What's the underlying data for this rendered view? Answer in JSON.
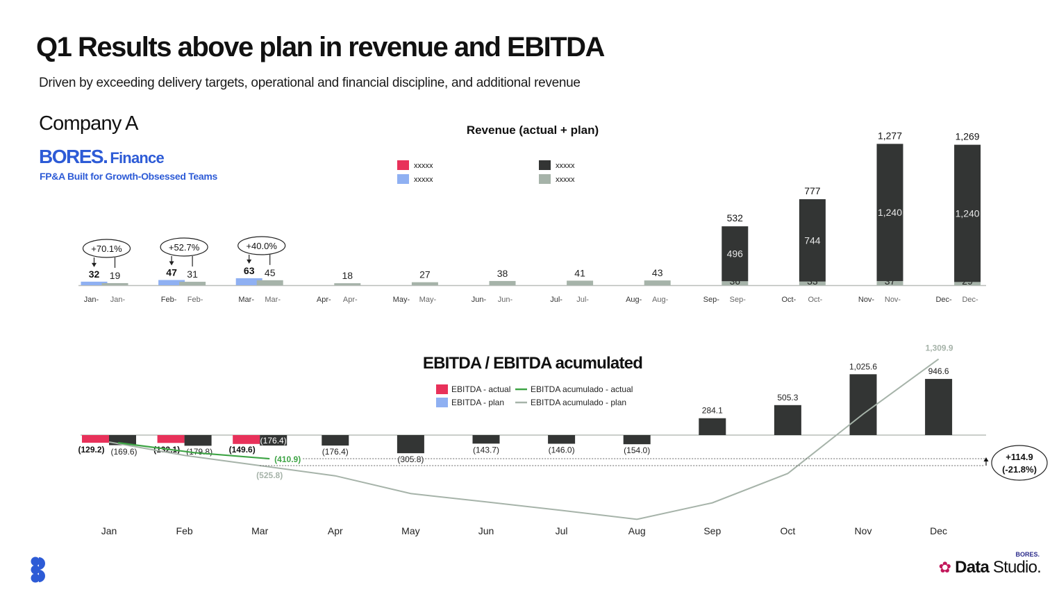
{
  "page": {
    "title": "Q1 Results above plan in revenue and EBITDA",
    "subtitle": "Driven by exceeding delivery targets, operational and financial discipline, and additional revenue",
    "company": "Company A",
    "brand_bold": "BORES.",
    "brand_word": "Finance",
    "tagline": "FP&A Built for Growth-Obsessed Teams",
    "footer_brand_small": "BORES.",
    "footer_brand_big": "Data",
    "footer_brand_light": "Studio."
  },
  "colors": {
    "red": "#e8315a",
    "blue": "#8fb0f2",
    "dark": "#333534",
    "sage": "#a6b3a9",
    "green": "#3ea445",
    "brand_blue": "#2d5bd6"
  },
  "chart_data": [
    {
      "type": "bar",
      "title": "Revenue (actual + plan)",
      "legend": [
        "xxxxx",
        "xxxxx",
        "xxxxx",
        "xxxxx"
      ],
      "categories": [
        "Jan",
        "Feb",
        "Mar",
        "Apr",
        "May",
        "Jun",
        "Jul",
        "Aug",
        "Sep",
        "Oct",
        "Nov",
        "Dec"
      ],
      "series": [
        {
          "values": [
            32,
            47,
            63,
            null,
            null,
            null,
            null,
            null,
            null,
            null,
            null,
            null
          ]
        },
        {
          "values": [
            19,
            31,
            45,
            18,
            27,
            38,
            41,
            43,
            36,
            33,
            37,
            29
          ]
        },
        {
          "values": [
            null,
            null,
            null,
            null,
            null,
            null,
            null,
            null,
            496,
            744,
            1240,
            1240
          ]
        }
      ],
      "totals": [
        null,
        null,
        null,
        null,
        null,
        null,
        null,
        null,
        532,
        777,
        1277,
        1269
      ],
      "tick_labels_actual": [
        "Jan-",
        "Feb-",
        "Mar-",
        "Apr-",
        "May-",
        "Jun-",
        "Jul-",
        "Aug-",
        "Sep-",
        "Oct-",
        "Nov-",
        "Dec-"
      ],
      "tick_labels_plan": [
        "Jan-",
        "Feb-",
        "Mar-",
        "Apr-",
        "May-",
        "Jun-",
        "Jul-",
        "Aug-",
        "Sep-",
        "Oct-",
        "Nov-",
        "Dec-"
      ],
      "variance_labels": [
        "+70.1%",
        "+52.7%",
        "+40.0%"
      ],
      "ylim": [
        0,
        1300
      ]
    },
    {
      "type": "bar",
      "title": "EBITDA / EBITDA acumulated",
      "legend": [
        "EBITDA - actual",
        "EBITDA - plan",
        "EBITDA acumulado - actual",
        "EBITDA acumulado - plan"
      ],
      "categories": [
        "Jan",
        "Feb",
        "Mar",
        "Apr",
        "May",
        "Jun",
        "Jul",
        "Aug",
        "Sep",
        "Oct",
        "Nov",
        "Dec"
      ],
      "series": [
        {
          "name": "EBITDA - actual",
          "values": [
            -129.2,
            -132.1,
            -149.6,
            null,
            null,
            null,
            null,
            null,
            null,
            null,
            null,
            null
          ]
        },
        {
          "name": "EBITDA - plan",
          "values": [
            -169.6,
            -179.8,
            -176.4,
            -176.4,
            -305.8,
            -143.7,
            -146.0,
            -154.0,
            284.1,
            505.3,
            1025.6,
            946.6
          ]
        },
        {
          "name": "EBITDA acumulado - actual",
          "values": [
            -129.2,
            -261.3,
            -410.9,
            null,
            null,
            null,
            null,
            null,
            null,
            null,
            null,
            null
          ]
        },
        {
          "name": "EBITDA acumulado - plan",
          "values": [
            -169.6,
            -349.4,
            -525.8,
            -702.2,
            -1008.0,
            -1151.7,
            -1297.7,
            -1451.7,
            -1167.6,
            -662.3,
            363.3,
            1309.9
          ]
        }
      ],
      "value_labels": {
        "actual": [
          "(129.2)",
          "(132.1)",
          "(149.6)"
        ],
        "plan": [
          "(169.6)",
          "(179.8)",
          "(176.4)",
          "(176.4)",
          "(305.8)",
          "(143.7)",
          "(146.0)",
          "(154.0)",
          "284.1",
          "505.3",
          "1,025.6",
          "946.6"
        ],
        "cum_actual_end": "(410.9)",
        "cum_plan_q1": "(525.8)",
        "cum_plan_end": "1,309.9"
      },
      "variance_line1": "+114.9",
      "variance_line2": "(-21.8%)",
      "ylim": [
        -1500,
        1350
      ]
    }
  ]
}
